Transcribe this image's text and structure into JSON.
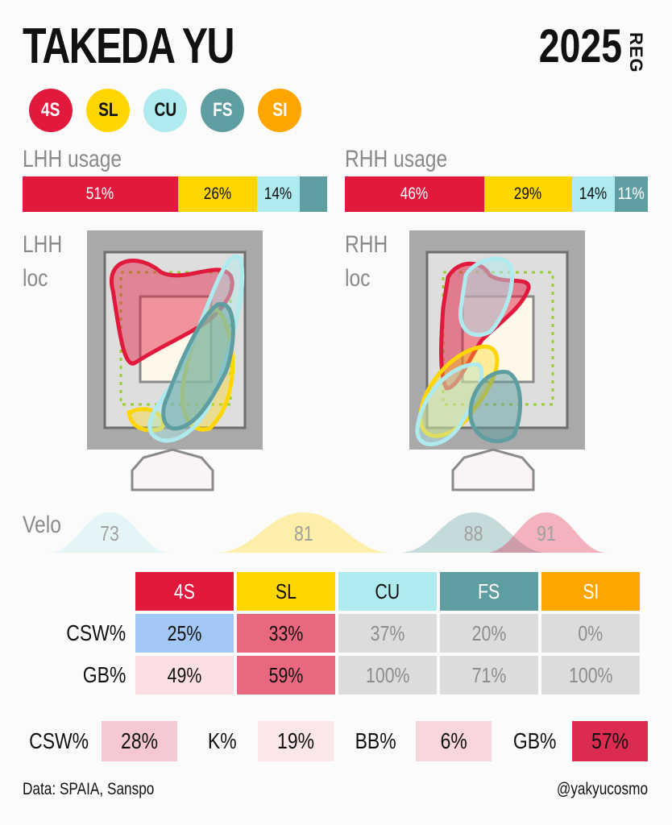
{
  "header": {
    "player": "TAKEDA YU",
    "season": "2025",
    "season_type": "REG"
  },
  "pitches": [
    {
      "code": "4S",
      "color": "#e0193d",
      "text": "#ffffff"
    },
    {
      "code": "SL",
      "color": "#ffd600",
      "text": "#111111"
    },
    {
      "code": "CU",
      "color": "#aeeaee",
      "text": "#111111"
    },
    {
      "code": "FS",
      "color": "#5f9ea0",
      "text": "#ffffff"
    },
    {
      "code": "SI",
      "color": "#ffa500",
      "text": "#ffffff"
    }
  ],
  "labels": {
    "lhh_usage": "LHH usage",
    "rhh_usage": "RHH usage",
    "lhh_loc_1": "LHH",
    "lhh_loc_2": "loc",
    "rhh_loc_1": "RHH",
    "rhh_loc_2": "loc",
    "velo": "Velo"
  },
  "chart_data": [
    {
      "type": "bar",
      "title": "LHH usage",
      "series": [
        {
          "name": "4S",
          "value": 51,
          "label": "51%"
        },
        {
          "name": "SL",
          "value": 26,
          "label": "26%"
        },
        {
          "name": "CU",
          "value": 14,
          "label": "14%"
        },
        {
          "name": "FS",
          "value": 9,
          "label": ""
        }
      ]
    },
    {
      "type": "bar",
      "title": "RHH usage",
      "series": [
        {
          "name": "4S",
          "value": 46,
          "label": "46%"
        },
        {
          "name": "SL",
          "value": 29,
          "label": "29%"
        },
        {
          "name": "CU",
          "value": 14,
          "label": "14%"
        },
        {
          "name": "FS",
          "value": 11,
          "label": "11%"
        }
      ]
    },
    {
      "type": "area",
      "title": "Velo",
      "series": [
        {
          "name": "CU",
          "peak": 73,
          "label": "73"
        },
        {
          "name": "SL",
          "peak": 81,
          "label": "81"
        },
        {
          "name": "FS",
          "peak": 88,
          "label": "88"
        },
        {
          "name": "4S",
          "peak": 91,
          "label": "91"
        }
      ]
    },
    {
      "type": "table",
      "columns": [
        "4S",
        "SL",
        "CU",
        "FS",
        "SI"
      ],
      "rows": [
        {
          "label": "CSW%",
          "values": [
            "25%",
            "33%",
            "37%",
            "20%",
            "0%"
          ],
          "colors": [
            "#a3c8f5",
            "#e8687f",
            "#dcdcdc",
            "#dcdcdc",
            "#dcdcdc"
          ],
          "text": [
            "#111",
            "#111",
            "#8d8d8d",
            "#8d8d8d",
            "#8d8d8d"
          ]
        },
        {
          "label": "GB%",
          "values": [
            "49%",
            "59%",
            "100%",
            "71%",
            "100%"
          ],
          "colors": [
            "#fbdfe4",
            "#e8687f",
            "#dcdcdc",
            "#dcdcdc",
            "#dcdcdc"
          ],
          "text": [
            "#111",
            "#111",
            "#8d8d8d",
            "#8d8d8d",
            "#8d8d8d"
          ]
        }
      ]
    }
  ],
  "summary": [
    {
      "label": "CSW%",
      "value": "28%",
      "color": "#f6c8d1"
    },
    {
      "label": "K%",
      "value": "19%",
      "color": "#fbe7ea"
    },
    {
      "label": "BB%",
      "value": "6%",
      "color": "#f9d6dc"
    },
    {
      "label": "GB%",
      "value": "57%",
      "color": "#dc2b50"
    }
  ],
  "footer": {
    "source": "Data: SPAIA, Sanspo",
    "handle": "@yakyucosmo"
  }
}
